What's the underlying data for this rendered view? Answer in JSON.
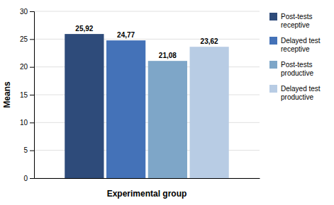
{
  "chart_data": {
    "type": "bar",
    "categories": [
      null
    ],
    "series": [
      {
        "name": "Post-tests\nreceptive",
        "color": "#2E4B7A",
        "values": [
          25.92
        ],
        "value_labels": [
          "25,92"
        ]
      },
      {
        "name": "Delayed test\nreceptive",
        "color": "#4472B8",
        "values": [
          24.77
        ],
        "value_labels": [
          "24,77"
        ]
      },
      {
        "name": "Post-tests\nproductive",
        "color": "#7EA6C8",
        "values": [
          21.08
        ],
        "value_labels": [
          "21,08"
        ]
      },
      {
        "name": "Delayed test\nproductive",
        "color": "#B8CCE4",
        "values": [
          23.62
        ],
        "value_labels": [
          "23,62"
        ]
      }
    ],
    "ylabel": "Means",
    "xlabel": "Experimental group",
    "ylim": [
      0,
      30
    ],
    "yticks": [
      0,
      5,
      10,
      15,
      20,
      25,
      30
    ],
    "grid": true,
    "data_labels": true,
    "legend": "right"
  }
}
